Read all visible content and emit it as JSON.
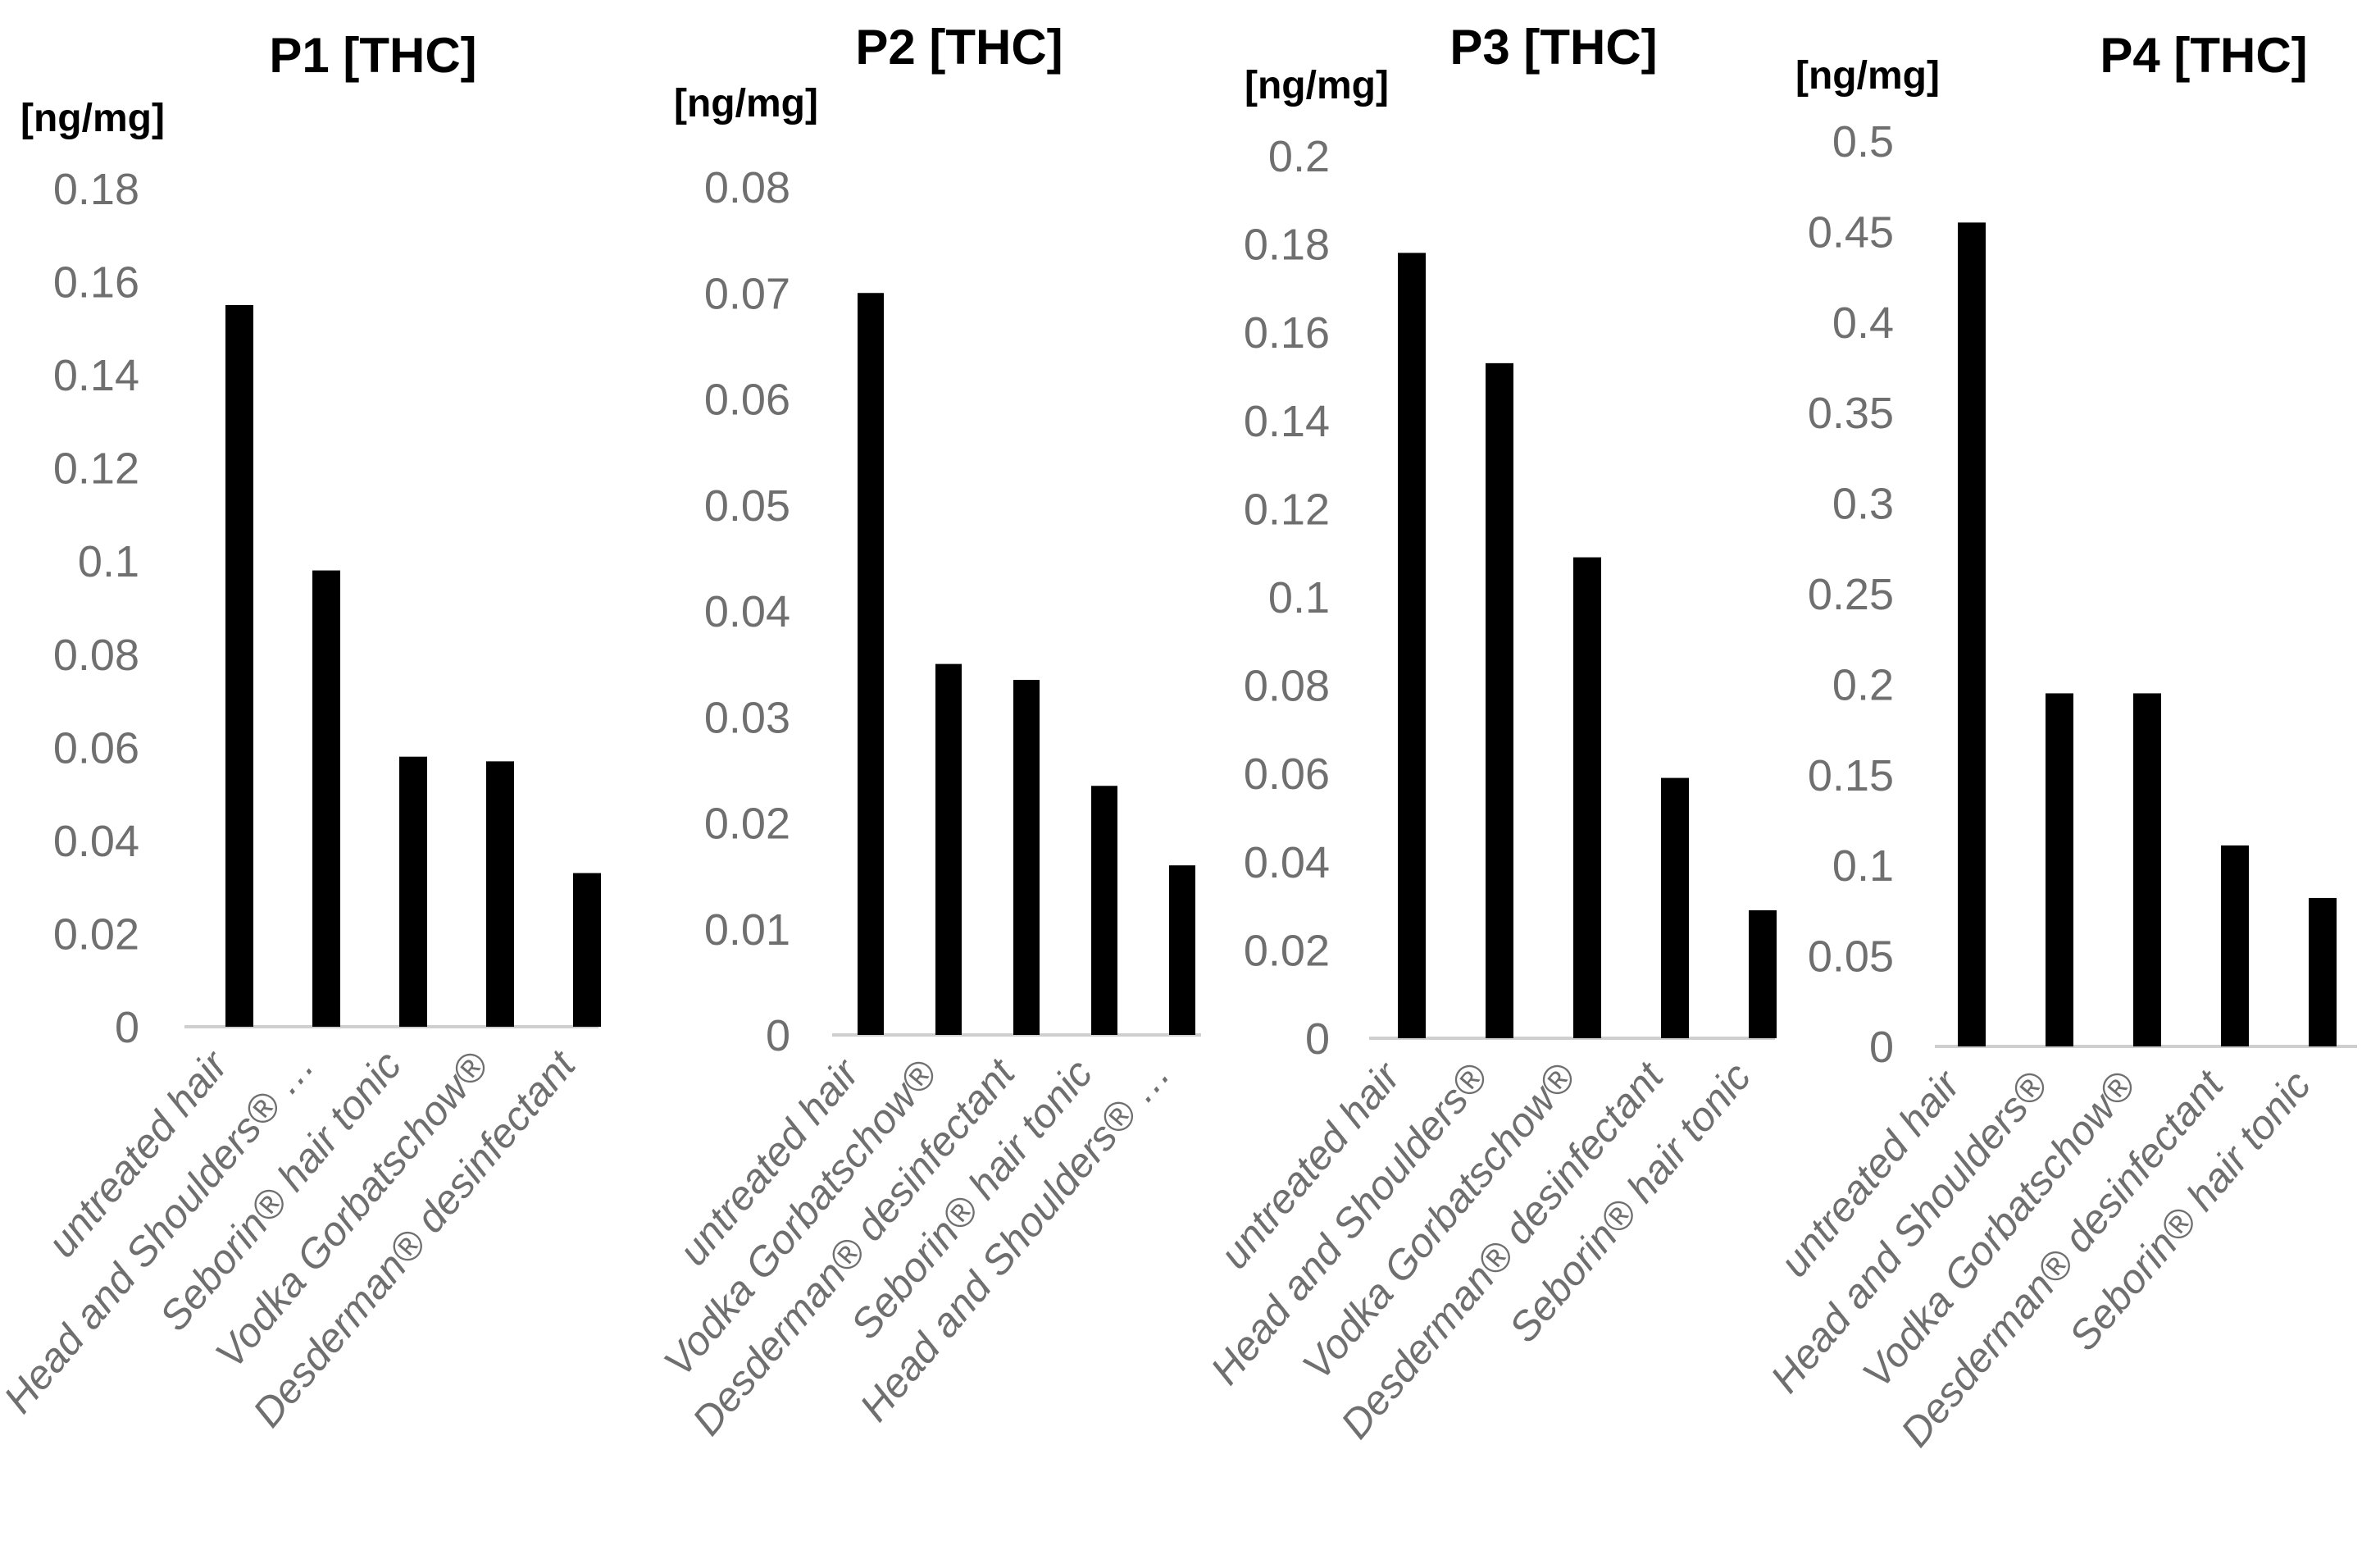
{
  "figure": {
    "bar_color": "#000000",
    "axis_color": "#cfcfcf",
    "tick_color": "#6f6f6f"
  },
  "chart_data": [
    {
      "type": "bar",
      "title": "P1 [THC]",
      "ylabel": "[ng/mg]",
      "xlabel": "",
      "categories": [
        "untreated hair",
        "Head and Shoulders® …",
        "Seborin® hair tonic",
        "Vodka Gorbatschow®",
        "Desderman® desinfectant"
      ],
      "values": [
        0.155,
        0.098,
        0.058,
        0.057,
        0.033
      ],
      "ylim": [
        0,
        0.18
      ],
      "yticks": [
        0,
        0.02,
        0.04,
        0.06,
        0.08,
        0.1,
        0.12,
        0.14,
        0.16,
        0.18
      ],
      "ytick_labels": [
        "0",
        "0.02",
        "0.04",
        "0.06",
        "0.08",
        "0.1",
        "0.12",
        "0.14",
        "0.16",
        "0.18"
      ],
      "grid": false,
      "legend": "none"
    },
    {
      "type": "bar",
      "title": "P2 [THC]",
      "ylabel": "[ng/mg]",
      "xlabel": "",
      "categories": [
        "untreated hair",
        "Vodka Gorbatschow®",
        "Desderman® desinfectant",
        "Seborin® hair tonic",
        "Head and Shoulders® …"
      ],
      "values": [
        0.07,
        0.035,
        0.0335,
        0.0235,
        0.016
      ],
      "ylim": [
        0,
        0.08
      ],
      "yticks": [
        0,
        0.01,
        0.02,
        0.03,
        0.04,
        0.05,
        0.06,
        0.07,
        0.08
      ],
      "ytick_labels": [
        "0",
        "0.01",
        "0.02",
        "0.03",
        "0.04",
        "0.05",
        "0.06",
        "0.07",
        "0.08"
      ],
      "grid": false,
      "legend": "none"
    },
    {
      "type": "bar",
      "title": "P3 [THC]",
      "ylabel": "[ng/mg]",
      "xlabel": "",
      "categories": [
        "untreated hair",
        "Head and Shoulders®",
        "Vodka Gorbatschow®",
        "Desderman® desinfectant",
        "Seborin® hair tonic"
      ],
      "values": [
        0.178,
        0.153,
        0.109,
        0.059,
        0.029
      ],
      "ylim": [
        0,
        0.2
      ],
      "yticks": [
        0,
        0.02,
        0.04,
        0.06,
        0.08,
        0.1,
        0.12,
        0.14,
        0.16,
        0.18,
        0.2
      ],
      "ytick_labels": [
        "0",
        "0.02",
        "0.04",
        "0.06",
        "0.08",
        "0.1",
        "0.12",
        "0.14",
        "0.16",
        "0.18",
        "0.2"
      ],
      "grid": false,
      "legend": "none"
    },
    {
      "type": "bar",
      "title": "P4 [THC]",
      "ylabel": "[ng/mg]",
      "xlabel": "",
      "categories": [
        "untreated hair",
        "Head and Shoulders®",
        "Vodka Gorbatschow®",
        "Desderman® desinfectant",
        "Seborin® hair tonic"
      ],
      "values": [
        0.455,
        0.195,
        0.195,
        0.111,
        0.082
      ],
      "ylim": [
        0,
        0.5
      ],
      "yticks": [
        0,
        0.05,
        0.1,
        0.15,
        0.2,
        0.25,
        0.3,
        0.35,
        0.4,
        0.45,
        0.5
      ],
      "ytick_labels": [
        "0",
        "0.05",
        "0.1",
        "0.15",
        "0.2",
        "0.25",
        "0.3",
        "0.35",
        "0.4",
        "0.45",
        "0.5"
      ],
      "grid": false,
      "legend": "none"
    }
  ]
}
